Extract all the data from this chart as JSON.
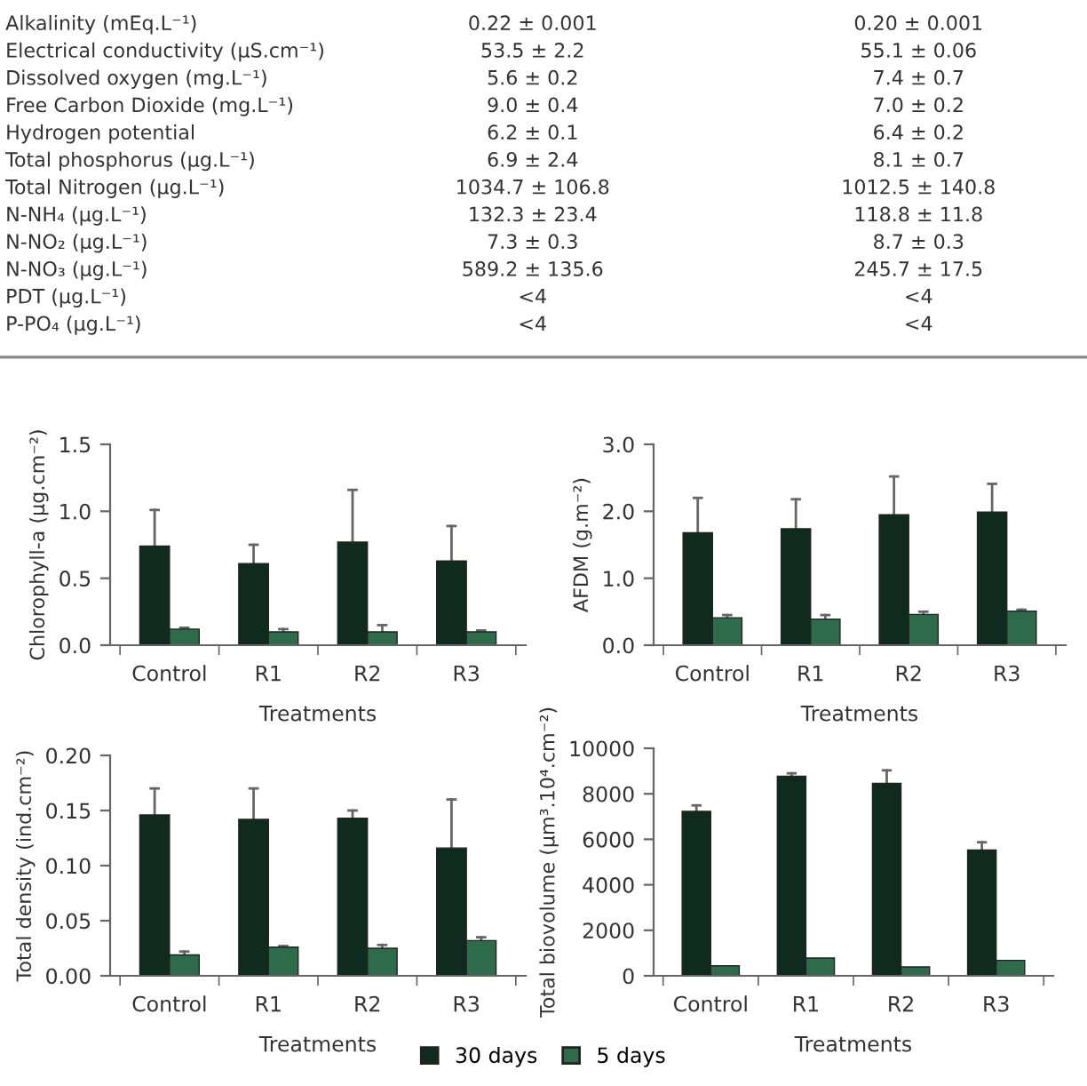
{
  "chart_data": [
    {
      "type": "other",
      "annotations": [
        "Alkalinity (mEq.L⁻¹)",
        "0.22 ± 0.001",
        "0.20 ± 0.001",
        "Electrical conductivity (µS.cm⁻¹)",
        "53.5 ± 2.2",
        "55.1 ± 0.06",
        "Dissolved oxygen (mg.L⁻¹)",
        "5.6 ± 0.2",
        "7.4 ± 0.7",
        "Free Carbon Dioxide (mg.L⁻¹)",
        "9.0 ± 0.4",
        "7.0 ± 0.2",
        "Hydrogen potential",
        "6.2 ± 0.1",
        "6.4 ± 0.2",
        "Total phosphorus (µg.L⁻¹)",
        "6.9 ± 2.4",
        "8.1 ± 0.7",
        "Total Nitrogen (µg.L⁻¹)",
        "1034.7 ± 106.8",
        "1012.5 ± 140.8",
        "N-NH₄ (µg.L⁻¹)",
        "132.3 ± 23.4",
        "118.8 ± 11.8",
        "N-NO₂ (µg.L⁻¹)",
        "7.3 ± 0.3",
        "8.7 ± 0.3",
        "N-NO₃ (µg.L⁻¹)",
        "589.2 ± 135.6",
        "245.7 ± 17.5",
        "PDT (µg.L⁻¹)",
        "<4",
        "<4",
        "P-PO₄ (µg.L⁻¹)",
        "<4",
        "<4"
      ]
    },
    {
      "type": "bar",
      "ylabel": "Chlorophyll-a (µg.cm⁻²)",
      "xlabel": "Treatments",
      "categories": [
        "Control",
        "R1",
        "R2",
        "R3"
      ],
      "ylim": [
        0,
        1.5
      ],
      "yticks": [
        {
          "value": 0,
          "label": "0.0"
        },
        {
          "value": 0.5,
          "label": "0.5"
        },
        {
          "value": 1.0,
          "label": "1.0"
        },
        {
          "value": 1.5,
          "label": "1.5"
        }
      ],
      "grid": false,
      "series": [
        {
          "color": "#0f2a1e",
          "values": [
            0.74,
            0.61,
            0.77,
            0.63
          ],
          "errors": [
            [
              0.74,
              1.01
            ],
            [
              0.61,
              0.75
            ],
            [
              0.77,
              1.16
            ],
            [
              0.63,
              0.89
            ]
          ]
        },
        {
          "color": "#2e6b4a",
          "values": [
            0.12,
            0.1,
            0.1,
            0.1
          ],
          "errors": [
            [
              0.12,
              0.13
            ],
            [
              0.1,
              0.12
            ],
            [
              0.1,
              0.15
            ],
            [
              0.1,
              0.11
            ]
          ]
        }
      ]
    },
    {
      "type": "bar",
      "ylabel": "AFDM (g.m⁻²)",
      "xlabel": "Treatments",
      "categories": [
        "Control",
        "R1",
        "R2",
        "R3"
      ],
      "ylim": [
        0,
        3.0
      ],
      "yticks": [
        {
          "value": 0,
          "label": "0.0"
        },
        {
          "value": 1.0,
          "label": "1.0"
        },
        {
          "value": 2.0,
          "label": "2.0"
        },
        {
          "value": 3.0,
          "label": "3.0"
        }
      ],
      "grid": false,
      "series": [
        {
          "color": "#0f2a1e",
          "values": [
            1.68,
            1.74,
            1.95,
            1.99
          ],
          "errors": [
            [
              1.68,
              2.2
            ],
            [
              1.74,
              2.18
            ],
            [
              1.95,
              2.52
            ],
            [
              1.99,
              2.41
            ]
          ]
        },
        {
          "color": "#2e6b4a",
          "values": [
            0.41,
            0.39,
            0.46,
            0.51
          ],
          "errors": [
            [
              0.41,
              0.45
            ],
            [
              0.39,
              0.45
            ],
            [
              0.46,
              0.5
            ],
            [
              0.51,
              0.53
            ]
          ]
        }
      ]
    },
    {
      "type": "bar",
      "ylabel": "Total density (ind.cm⁻²)",
      "xlabel": "Treatments",
      "categories": [
        "Control",
        "R1",
        "R2",
        "R3"
      ],
      "ylim": [
        0,
        0.2
      ],
      "yticks": [
        {
          "value": 0,
          "label": "0.00"
        },
        {
          "value": 0.05,
          "label": "0.05"
        },
        {
          "value": 0.1,
          "label": "0.10"
        },
        {
          "value": 0.15,
          "label": "0.15"
        },
        {
          "value": 0.2,
          "label": "0.20"
        }
      ],
      "grid": false,
      "series": [
        {
          "color": "#0f2a1e",
          "values": [
            0.146,
            0.142,
            0.143,
            0.116
          ],
          "errors": [
            [
              0.146,
              0.17
            ],
            [
              0.142,
              0.17
            ],
            [
              0.143,
              0.15
            ],
            [
              0.116,
              0.16
            ]
          ]
        },
        {
          "color": "#2e6b4a",
          "values": [
            0.019,
            0.026,
            0.025,
            0.032
          ],
          "errors": [
            [
              0.019,
              0.022
            ],
            [
              0.026,
              0.027
            ],
            [
              0.025,
              0.028
            ],
            [
              0.032,
              0.035
            ]
          ]
        }
      ]
    },
    {
      "type": "bar",
      "ylabel": "Total biovolume (µm³.10⁴.cm⁻²)",
      "xlabel": "Treatments",
      "categories": [
        "Control",
        "R1",
        "R2",
        "R3"
      ],
      "ylim": [
        0,
        10000
      ],
      "yticks": [
        0,
        2000,
        4000,
        6000,
        8000,
        10000
      ],
      "grid": false,
      "legend": "bottom",
      "series": [
        {
          "name": "30 days",
          "color": "#0f2a1e",
          "values": [
            7230,
            8770,
            8460,
            5530
          ],
          "errors": [
            [
              7230,
              7490
            ],
            [
              8770,
              8900
            ],
            [
              8460,
              9030
            ],
            [
              5530,
              5870
            ]
          ]
        },
        {
          "name": "5 days",
          "color": "#2e6b4a",
          "values": [
            440,
            780,
            390,
            680
          ]
        }
      ]
    }
  ]
}
